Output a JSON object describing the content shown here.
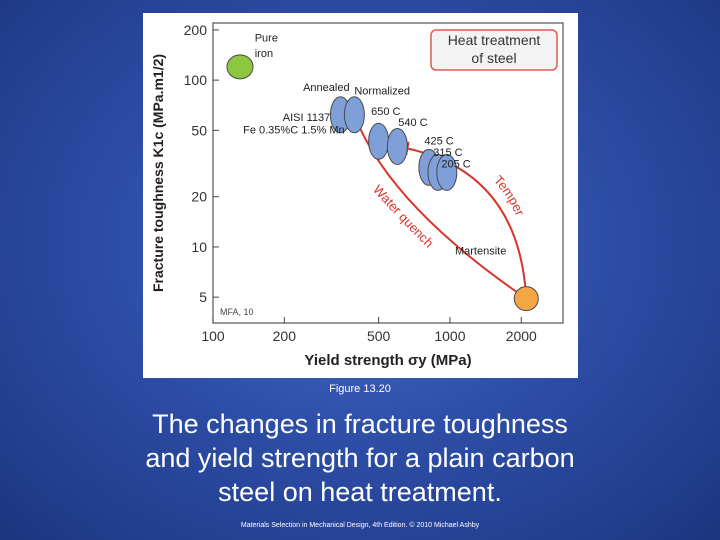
{
  "figure_caption": "Figure 13.20",
  "slide_text_lines": [
    "The changes in fracture toughness",
    "and yield strength for a plain carbon",
    "steel on heat treatment."
  ],
  "credit": "Materials Selection in Mechanical Design, 4th Edition. © 2010 Michael Ashby",
  "chart_data": {
    "type": "scatter",
    "title_lines": [
      "Heat treatment",
      "of steel"
    ],
    "xlabel": "Yield strength σy (MPa)",
    "ylabel": "Fracture toughness K1c (MPa.m1/2)",
    "x_scale": "log",
    "y_scale": "log",
    "xlim": [
      100,
      3000
    ],
    "ylim": [
      3.5,
      220
    ],
    "x_ticks": [
      100,
      200,
      500,
      1000,
      2000
    ],
    "y_ticks": [
      5,
      10,
      20,
      50,
      100,
      200
    ],
    "grid": false,
    "credit_label": "MFA, 10",
    "colors": {
      "pure_iron": "#8dc63f",
      "steel": "#7f9fd9",
      "martensite": "#f6a545",
      "arrow": "#d9342b",
      "title_border": "#e05a4e"
    },
    "points": [
      {
        "label": "Pure iron",
        "x": 130,
        "y": 120,
        "rx": 13,
        "ry": 12,
        "color": "pure_iron"
      },
      {
        "label": "Annealed",
        "x": 345,
        "y": 62,
        "rx": 10,
        "ry": 18,
        "color": "steel"
      },
      {
        "label": "Normalized",
        "x": 395,
        "y": 62,
        "rx": 10,
        "ry": 18,
        "color": "steel"
      },
      {
        "label": "650 C",
        "x": 500,
        "y": 43,
        "rx": 10,
        "ry": 18,
        "color": "steel"
      },
      {
        "label": "540 C",
        "x": 600,
        "y": 40,
        "rx": 10,
        "ry": 18,
        "color": "steel"
      },
      {
        "label": "425 C",
        "x": 815,
        "y": 30,
        "rx": 10,
        "ry": 18,
        "color": "steel"
      },
      {
        "label": "315 C",
        "x": 890,
        "y": 28,
        "rx": 10,
        "ry": 18,
        "color": "steel"
      },
      {
        "label": "205 C",
        "x": 970,
        "y": 28,
        "rx": 10,
        "ry": 18,
        "color": "steel"
      },
      {
        "label": "Martensite",
        "x": 2100,
        "y": 4.9,
        "rx": 12,
        "ry": 12,
        "color": "martensite"
      }
    ],
    "annotations": [
      {
        "text": "Pure",
        "x": 150,
        "y": 170
      },
      {
        "text": "iron",
        "x": 150,
        "y": 138
      },
      {
        "text": "Annealed",
        "x": 240,
        "y": 86
      },
      {
        "text": "Normalized",
        "x": 395,
        "y": 82
      },
      {
        "text": "AISI 1137",
        "x": 197,
        "y": 57
      },
      {
        "text": "Fe 0.35%C 1.5% Mn",
        "x": 134,
        "y": 48
      },
      {
        "text": "650 C",
        "x": 465,
        "y": 62
      },
      {
        "text": "540 C",
        "x": 605,
        "y": 53
      },
      {
        "text": "425 C",
        "x": 780,
        "y": 41
      },
      {
        "text": "315 C",
        "x": 850,
        "y": 35
      },
      {
        "text": "205 C",
        "x": 920,
        "y": 30
      },
      {
        "text": "Martensite",
        "x": 1050,
        "y": 9
      }
    ],
    "arrows": [
      {
        "label": "Water quench",
        "from": [
          395,
          62
        ],
        "ctrl": [
          550,
          18
        ],
        "to": [
          2100,
          4.9
        ]
      },
      {
        "label": "Temper",
        "from": [
          2100,
          4.9
        ],
        "ctrl": [
          1950,
          30
        ],
        "to": [
          600,
          40
        ]
      }
    ]
  }
}
